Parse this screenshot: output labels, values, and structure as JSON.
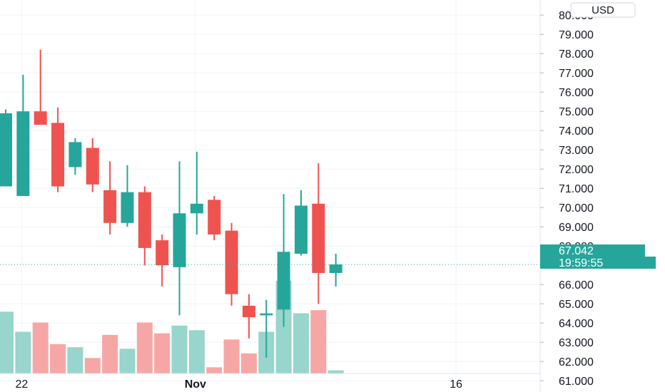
{
  "chart_data": {
    "type": "candlestick",
    "currency": "USD",
    "y_tick_labels": [
      "61.000",
      "62.000",
      "63.000",
      "64.000",
      "65.000",
      "66.000",
      "68.000",
      "69.000",
      "70.000",
      "71.000",
      "72.000",
      "73.000",
      "74.000",
      "75.000",
      "76.000",
      "77.000",
      "78.000",
      "79.000",
      "80.000"
    ],
    "y_range": [
      60.6,
      80.3
    ],
    "x_tick_labels": [
      {
        "label": "22",
        "index": 1
      },
      {
        "label": "Nov",
        "index": 11
      },
      {
        "label": "16",
        "index": 26
      }
    ],
    "last_price": {
      "value": 67.042,
      "label": "67.042",
      "countdown": "19:59:55"
    },
    "candles": [
      {
        "open": 71.1,
        "high": 75.1,
        "low": 71.1,
        "close": 74.9,
        "volume": 40
      },
      {
        "open": 70.6,
        "high": 76.9,
        "low": 70.6,
        "close": 75.0,
        "volume": 27
      },
      {
        "open": 75.0,
        "high": 78.2,
        "low": 74.3,
        "close": 74.3,
        "volume": 33
      },
      {
        "open": 74.4,
        "high": 75.2,
        "low": 70.8,
        "close": 71.1,
        "volume": 19
      },
      {
        "open": 72.1,
        "high": 73.6,
        "low": 71.7,
        "close": 73.4,
        "volume": 17
      },
      {
        "open": 73.1,
        "high": 73.6,
        "low": 70.8,
        "close": 71.2,
        "volume": 10
      },
      {
        "open": 70.9,
        "high": 72.4,
        "low": 68.6,
        "close": 69.2,
        "volume": 25
      },
      {
        "open": 69.2,
        "high": 72.2,
        "low": 69.0,
        "close": 70.8,
        "volume": 16
      },
      {
        "open": 70.8,
        "high": 71.1,
        "low": 67.0,
        "close": 67.9,
        "volume": 33
      },
      {
        "open": 68.3,
        "high": 68.6,
        "low": 65.9,
        "close": 67.0,
        "volume": 26
      },
      {
        "open": 66.9,
        "high": 72.4,
        "low": 64.4,
        "close": 69.7,
        "volume": 31
      },
      {
        "open": 69.7,
        "high": 72.9,
        "low": 68.6,
        "close": 70.2,
        "volume": 28
      },
      {
        "open": 70.4,
        "high": 70.6,
        "low": 68.3,
        "close": 68.6,
        "volume": 4
      },
      {
        "open": 68.8,
        "high": 69.2,
        "low": 64.9,
        "close": 65.5,
        "volume": 22
      },
      {
        "open": 64.9,
        "high": 65.5,
        "low": 63.2,
        "close": 64.3,
        "volume": 13
      },
      {
        "open": 64.4,
        "high": 65.2,
        "low": 62.2,
        "close": 64.5,
        "volume": 27
      },
      {
        "open": 64.7,
        "high": 70.7,
        "low": 63.8,
        "close": 67.7,
        "volume": 60
      },
      {
        "open": 67.6,
        "high": 70.9,
        "low": 67.5,
        "close": 70.1,
        "volume": 39
      },
      {
        "open": 70.2,
        "high": 72.3,
        "low": 65.0,
        "close": 66.6,
        "volume": 41
      },
      {
        "open": 66.6,
        "high": 67.6,
        "low": 65.9,
        "close": 67.042,
        "volume": 2
      }
    ],
    "colors": {
      "up": "#26a69a",
      "down": "#ef5350",
      "up_volume": "#98d5cc",
      "down_volume": "#f6a7a5",
      "grid": "#f0f3fa",
      "text": "#131722",
      "last_price_tag": "#26a69a"
    }
  }
}
